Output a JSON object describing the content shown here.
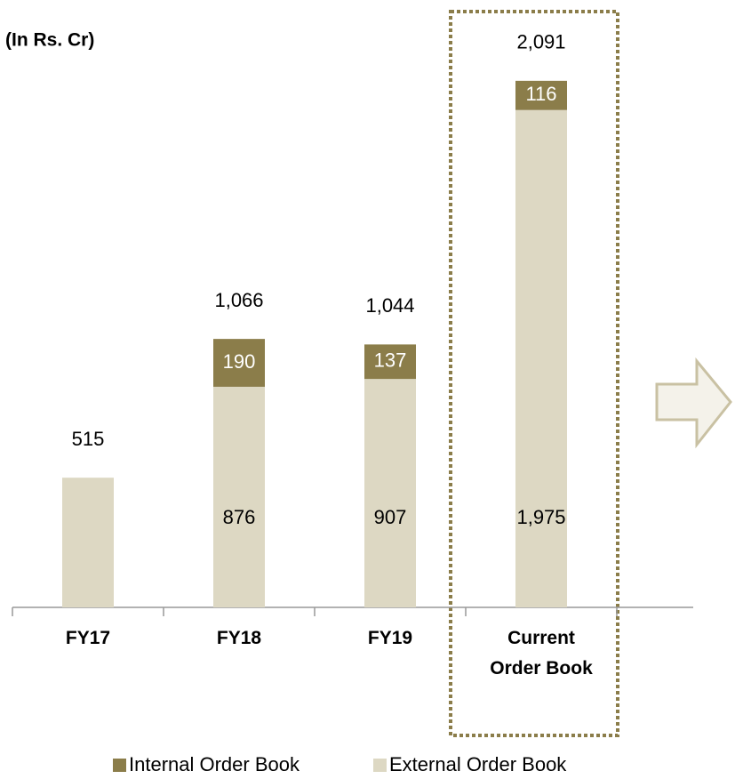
{
  "chart_data": {
    "type": "stacked_bar",
    "title": "(In Rs. Cr)",
    "categories": [
      "FY17",
      "FY18",
      "FY19",
      "Current Order Book"
    ],
    "series": [
      {
        "name": "External Order Book",
        "color": "#ddd8c3",
        "values": [
          515,
          876,
          907,
          1975
        ],
        "value_labels": [
          null,
          "876",
          "907",
          "1,975"
        ]
      },
      {
        "name": "Internal Order Book",
        "color": "#8b7d4a",
        "values": [
          null,
          190,
          137,
          116
        ]
      }
    ],
    "totals": {
      "values": [
        515,
        1066,
        1044,
        2091
      ],
      "value_labels": [
        "515",
        "1,066",
        "1,044",
        "2,091"
      ]
    },
    "ylim": [
      0,
      2200
    ]
  }
}
